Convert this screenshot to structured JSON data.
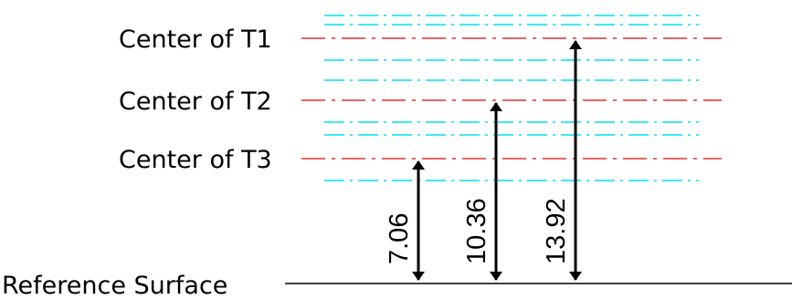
{
  "labels": {
    "t1": "Center of T1",
    "t2": "Center of T2",
    "t3": "Center of T3",
    "reference": "Reference Surface"
  },
  "dimensions": [
    {
      "id": "t3",
      "value": "7.06"
    },
    {
      "id": "t2",
      "value": "10.36"
    },
    {
      "id": "t1",
      "value": "13.92"
    }
  ],
  "colors": {
    "center_line": "#e03030",
    "boundary_line": "#00e0f0",
    "reference_line": "#000000",
    "arrow": "#000000"
  }
}
